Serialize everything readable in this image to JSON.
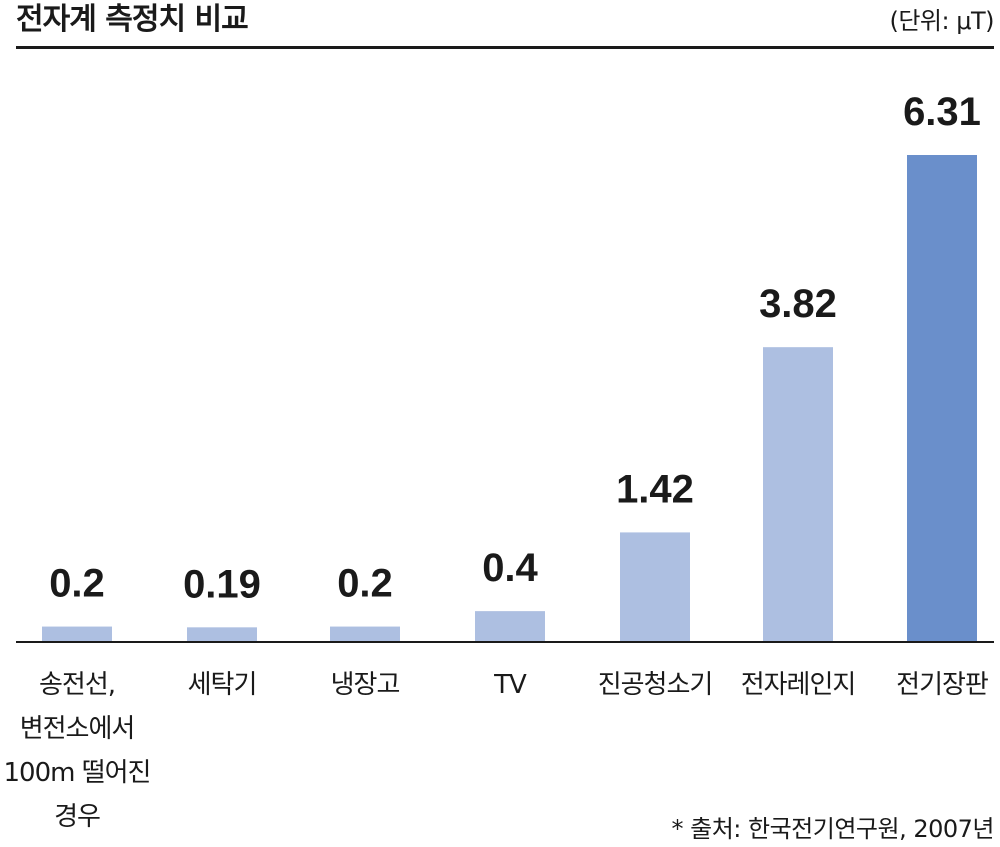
{
  "title": "전자계 측정치 비교",
  "unit": "(단위: μT)",
  "source": "* 출처: 한국전기연구원, 2007년",
  "chart_data": {
    "type": "bar",
    "categories": [
      "송전선,\n변전소에서\n100m 떨어진\n경우",
      "세탁기",
      "냉장고",
      "TV",
      "진공청소기",
      "전자레인지",
      "전기장판"
    ],
    "values": [
      0.2,
      0.19,
      0.2,
      0.4,
      1.42,
      3.82,
      6.31
    ],
    "value_labels": [
      "0.2",
      "0.19",
      "0.2",
      "0.4",
      "1.42",
      "3.82",
      "6.31"
    ],
    "ylim": [
      0,
      6.8
    ],
    "grid": false,
    "colors": {
      "bar": "#adbfe1",
      "highlight": "#6a8fcb",
      "text": "#1a1a1a"
    },
    "highlight_index": 6
  }
}
